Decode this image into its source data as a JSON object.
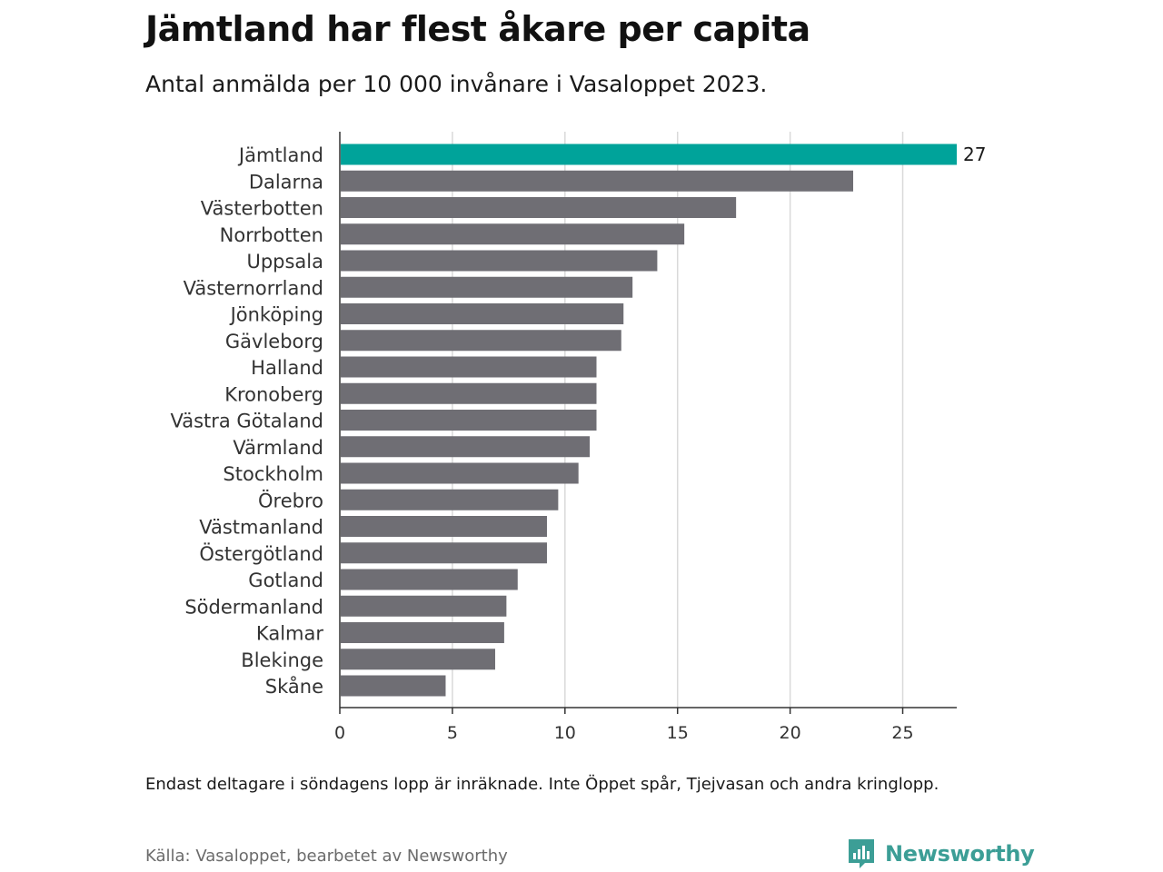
{
  "header": {
    "title": "Jämtland har flest åkare per capita",
    "subtitle": "Antal anmälda per 10 000 invånare i Vasaloppet 2023."
  },
  "chart_data": {
    "type": "bar",
    "orientation": "horizontal",
    "categories": [
      "Jämtland",
      "Dalarna",
      "Västerbotten",
      "Norrbotten",
      "Uppsala",
      "Västernorrland",
      "Jönköping",
      "Gävleborg",
      "Halland",
      "Kronoberg",
      "Västra Götaland",
      "Värmland",
      "Stockholm",
      "Örebro",
      "Västmanland",
      "Östergötland",
      "Gotland",
      "Södermanland",
      "Kalmar",
      "Blekinge",
      "Skåne"
    ],
    "values": [
      27.4,
      22.8,
      17.6,
      15.3,
      14.1,
      13.0,
      12.6,
      12.5,
      11.4,
      11.4,
      11.4,
      11.1,
      10.6,
      9.7,
      9.2,
      9.2,
      7.9,
      7.4,
      7.3,
      6.9,
      4.7
    ],
    "highlight_label": "27",
    "xlim": [
      0,
      27.4
    ],
    "xticks": [
      "0",
      "5",
      "10",
      "15",
      "20",
      "25"
    ],
    "grid": true,
    "colors": {
      "highlight": "#00a39a",
      "default": "#6f6e74",
      "grid": "#d9d9d9",
      "axis": "#333333"
    }
  },
  "footer": {
    "note": "Endast deltagare i söndagens lopp är inräknade. Inte Öppet spår, Tjejvasan och andra kringlopp.",
    "source": "Källa: Vasaloppet, bearbetet av Newsworthy",
    "brand": "Newsworthy",
    "brand_icon": "newsworthy-logo-icon",
    "brand_color": "#3c9e96"
  }
}
